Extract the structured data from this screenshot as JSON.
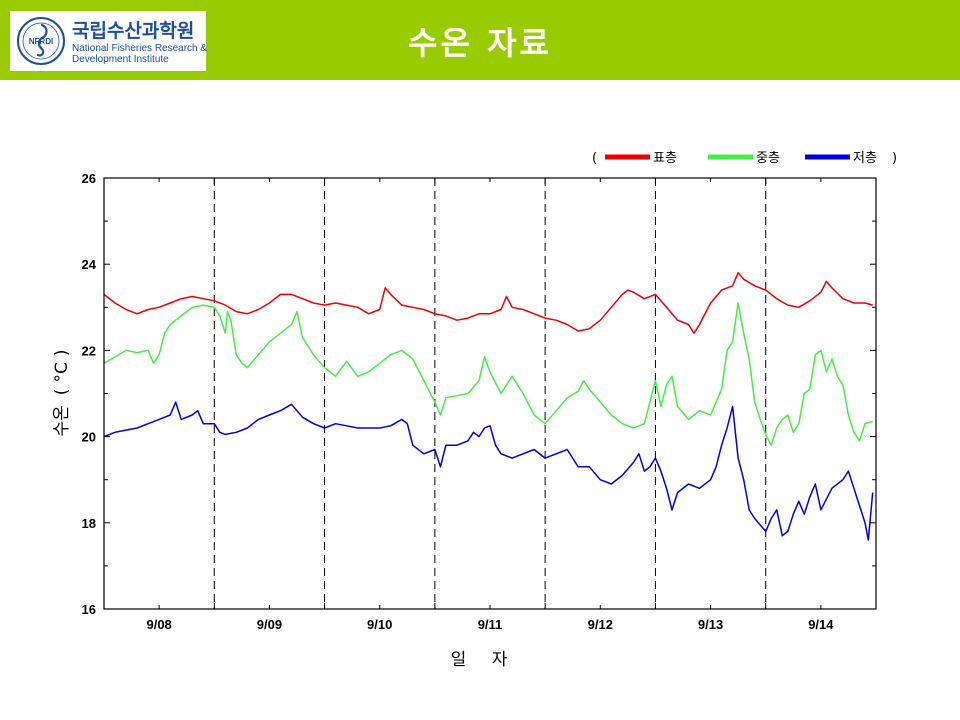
{
  "header": {
    "logo_korean": "국립수산과학원",
    "logo_english_line1": "National Fisheries Research &",
    "logo_english_line2": "Development Institute",
    "logo_emblem_text": "NFRDI",
    "page_title": "수온 자료",
    "background_color": "#99cc00"
  },
  "chart_data": {
    "type": "line",
    "title": "",
    "xlabel": "일 자",
    "ylabel": "수온 (°C)",
    "ylabel_parts": [
      "수온",
      "(",
      "°C",
      ")"
    ],
    "ylim": [
      16,
      26
    ],
    "yticks": [
      16,
      18,
      20,
      22,
      24,
      26
    ],
    "xlim": [
      0,
      7
    ],
    "day_labels": [
      "9/08",
      "9/09",
      "9/10",
      "9/11",
      "9/12",
      "9/13",
      "9/14"
    ],
    "day_dividers": [
      1,
      2,
      3,
      4,
      5,
      6
    ],
    "legend_open": "(",
    "legend_close": ")",
    "series": [
      {
        "name": "표층",
        "color": "#ee0000",
        "points": [
          [
            0,
            23.3
          ],
          [
            0.1,
            23.1
          ],
          [
            0.2,
            22.95
          ],
          [
            0.3,
            22.85
          ],
          [
            0.4,
            22.95
          ],
          [
            0.5,
            23.0
          ],
          [
            0.6,
            23.1
          ],
          [
            0.7,
            23.2
          ],
          [
            0.8,
            23.25
          ],
          [
            0.9,
            23.2
          ],
          [
            1.0,
            23.15
          ],
          [
            1.1,
            23.05
          ],
          [
            1.2,
            22.9
          ],
          [
            1.3,
            22.85
          ],
          [
            1.4,
            22.95
          ],
          [
            1.5,
            23.1
          ],
          [
            1.6,
            23.3
          ],
          [
            1.7,
            23.3
          ],
          [
            1.8,
            23.2
          ],
          [
            1.9,
            23.1
          ],
          [
            2.0,
            23.05
          ],
          [
            2.1,
            23.1
          ],
          [
            2.2,
            23.05
          ],
          [
            2.3,
            23.0
          ],
          [
            2.4,
            22.85
          ],
          [
            2.5,
            22.95
          ],
          [
            2.55,
            23.45
          ],
          [
            2.6,
            23.3
          ],
          [
            2.7,
            23.05
          ],
          [
            2.8,
            23.0
          ],
          [
            2.9,
            22.95
          ],
          [
            3.0,
            22.85
          ],
          [
            3.1,
            22.8
          ],
          [
            3.2,
            22.7
          ],
          [
            3.3,
            22.75
          ],
          [
            3.4,
            22.85
          ],
          [
            3.5,
            22.85
          ],
          [
            3.6,
            22.95
          ],
          [
            3.65,
            23.25
          ],
          [
            3.7,
            23.0
          ],
          [
            3.8,
            22.95
          ],
          [
            3.9,
            22.85
          ],
          [
            4.0,
            22.75
          ],
          [
            4.1,
            22.7
          ],
          [
            4.2,
            22.6
          ],
          [
            4.3,
            22.45
          ],
          [
            4.4,
            22.5
          ],
          [
            4.5,
            22.7
          ],
          [
            4.6,
            23.0
          ],
          [
            4.7,
            23.3
          ],
          [
            4.75,
            23.4
          ],
          [
            4.8,
            23.35
          ],
          [
            4.9,
            23.2
          ],
          [
            5.0,
            23.3
          ],
          [
            5.1,
            23.0
          ],
          [
            5.2,
            22.7
          ],
          [
            5.3,
            22.6
          ],
          [
            5.35,
            22.4
          ],
          [
            5.4,
            22.6
          ],
          [
            5.5,
            23.1
          ],
          [
            5.6,
            23.4
          ],
          [
            5.7,
            23.5
          ],
          [
            5.75,
            23.8
          ],
          [
            5.8,
            23.65
          ],
          [
            5.9,
            23.5
          ],
          [
            6.0,
            23.4
          ],
          [
            6.1,
            23.2
          ],
          [
            6.2,
            23.05
          ],
          [
            6.3,
            23.0
          ],
          [
            6.4,
            23.15
          ],
          [
            6.5,
            23.35
          ],
          [
            6.55,
            23.6
          ],
          [
            6.6,
            23.45
          ],
          [
            6.7,
            23.2
          ],
          [
            6.8,
            23.1
          ],
          [
            6.9,
            23.1
          ],
          [
            6.97,
            23.05
          ]
        ]
      },
      {
        "name": "중층",
        "color": "#44ee44",
        "points": [
          [
            0,
            21.7
          ],
          [
            0.1,
            21.85
          ],
          [
            0.2,
            22.0
          ],
          [
            0.3,
            21.95
          ],
          [
            0.4,
            22.0
          ],
          [
            0.45,
            21.7
          ],
          [
            0.5,
            21.9
          ],
          [
            0.55,
            22.4
          ],
          [
            0.6,
            22.6
          ],
          [
            0.7,
            22.8
          ],
          [
            0.8,
            23.0
          ],
          [
            0.9,
            23.05
          ],
          [
            1.0,
            23.0
          ],
          [
            1.05,
            22.8
          ],
          [
            1.1,
            22.4
          ],
          [
            1.12,
            22.9
          ],
          [
            1.15,
            22.7
          ],
          [
            1.2,
            21.9
          ],
          [
            1.25,
            21.7
          ],
          [
            1.3,
            21.6
          ],
          [
            1.4,
            21.9
          ],
          [
            1.5,
            22.2
          ],
          [
            1.6,
            22.4
          ],
          [
            1.7,
            22.6
          ],
          [
            1.75,
            22.9
          ],
          [
            1.8,
            22.3
          ],
          [
            1.9,
            21.9
          ],
          [
            2.0,
            21.6
          ],
          [
            2.1,
            21.4
          ],
          [
            2.2,
            21.75
          ],
          [
            2.3,
            21.4
          ],
          [
            2.4,
            21.5
          ],
          [
            2.5,
            21.7
          ],
          [
            2.6,
            21.9
          ],
          [
            2.7,
            22.0
          ],
          [
            2.8,
            21.8
          ],
          [
            2.9,
            21.3
          ],
          [
            3.0,
            20.8
          ],
          [
            3.05,
            20.5
          ],
          [
            3.1,
            20.9
          ],
          [
            3.2,
            20.95
          ],
          [
            3.3,
            21.0
          ],
          [
            3.4,
            21.3
          ],
          [
            3.45,
            21.85
          ],
          [
            3.5,
            21.5
          ],
          [
            3.6,
            21.0
          ],
          [
            3.7,
            21.4
          ],
          [
            3.8,
            21.0
          ],
          [
            3.9,
            20.5
          ],
          [
            4.0,
            20.3
          ],
          [
            4.1,
            20.6
          ],
          [
            4.2,
            20.9
          ],
          [
            4.3,
            21.05
          ],
          [
            4.35,
            21.3
          ],
          [
            4.4,
            21.1
          ],
          [
            4.5,
            20.8
          ],
          [
            4.6,
            20.5
          ],
          [
            4.7,
            20.3
          ],
          [
            4.8,
            20.2
          ],
          [
            4.9,
            20.3
          ],
          [
            4.95,
            20.8
          ],
          [
            5.0,
            21.3
          ],
          [
            5.05,
            20.7
          ],
          [
            5.1,
            21.2
          ],
          [
            5.15,
            21.4
          ],
          [
            5.2,
            20.7
          ],
          [
            5.3,
            20.4
          ],
          [
            5.4,
            20.6
          ],
          [
            5.5,
            20.5
          ],
          [
            5.6,
            21.1
          ],
          [
            5.65,
            22.0
          ],
          [
            5.7,
            22.2
          ],
          [
            5.75,
            23.1
          ],
          [
            5.8,
            22.4
          ],
          [
            5.85,
            21.8
          ],
          [
            5.9,
            20.8
          ],
          [
            5.95,
            20.4
          ],
          [
            6.0,
            20.05
          ],
          [
            6.05,
            19.8
          ],
          [
            6.1,
            20.2
          ],
          [
            6.15,
            20.4
          ],
          [
            6.2,
            20.5
          ],
          [
            6.25,
            20.1
          ],
          [
            6.3,
            20.3
          ],
          [
            6.35,
            21.0
          ],
          [
            6.4,
            21.1
          ],
          [
            6.45,
            21.9
          ],
          [
            6.5,
            22.0
          ],
          [
            6.55,
            21.5
          ],
          [
            6.6,
            21.8
          ],
          [
            6.65,
            21.4
          ],
          [
            6.7,
            21.2
          ],
          [
            6.75,
            20.5
          ],
          [
            6.8,
            20.1
          ],
          [
            6.85,
            19.9
          ],
          [
            6.9,
            20.3
          ],
          [
            6.97,
            20.35
          ]
        ]
      },
      {
        "name": "저층",
        "color": "#0000dd",
        "points": [
          [
            0,
            20.0
          ],
          [
            0.1,
            20.1
          ],
          [
            0.2,
            20.15
          ],
          [
            0.3,
            20.2
          ],
          [
            0.4,
            20.3
          ],
          [
            0.5,
            20.4
          ],
          [
            0.6,
            20.5
          ],
          [
            0.65,
            20.8
          ],
          [
            0.7,
            20.4
          ],
          [
            0.8,
            20.5
          ],
          [
            0.85,
            20.6
          ],
          [
            0.9,
            20.3
          ],
          [
            1.0,
            20.3
          ],
          [
            1.05,
            20.1
          ],
          [
            1.1,
            20.05
          ],
          [
            1.2,
            20.1
          ],
          [
            1.3,
            20.2
          ],
          [
            1.4,
            20.4
          ],
          [
            1.5,
            20.5
          ],
          [
            1.6,
            20.6
          ],
          [
            1.7,
            20.75
          ],
          [
            1.8,
            20.45
          ],
          [
            1.9,
            20.3
          ],
          [
            2.0,
            20.2
          ],
          [
            2.1,
            20.3
          ],
          [
            2.2,
            20.25
          ],
          [
            2.3,
            20.2
          ],
          [
            2.4,
            20.2
          ],
          [
            2.5,
            20.2
          ],
          [
            2.6,
            20.25
          ],
          [
            2.7,
            20.4
          ],
          [
            2.75,
            20.3
          ],
          [
            2.8,
            19.8
          ],
          [
            2.9,
            19.6
          ],
          [
            3.0,
            19.7
          ],
          [
            3.05,
            19.3
          ],
          [
            3.1,
            19.8
          ],
          [
            3.2,
            19.8
          ],
          [
            3.3,
            19.9
          ],
          [
            3.35,
            20.1
          ],
          [
            3.4,
            20.0
          ],
          [
            3.45,
            20.2
          ],
          [
            3.5,
            20.25
          ],
          [
            3.55,
            19.8
          ],
          [
            3.6,
            19.6
          ],
          [
            3.7,
            19.5
          ],
          [
            3.8,
            19.6
          ],
          [
            3.9,
            19.7
          ],
          [
            4.0,
            19.5
          ],
          [
            4.1,
            19.6
          ],
          [
            4.2,
            19.7
          ],
          [
            4.3,
            19.3
          ],
          [
            4.4,
            19.3
          ],
          [
            4.5,
            19.0
          ],
          [
            4.6,
            18.9
          ],
          [
            4.7,
            19.1
          ],
          [
            4.8,
            19.4
          ],
          [
            4.85,
            19.6
          ],
          [
            4.9,
            19.2
          ],
          [
            4.95,
            19.3
          ],
          [
            5.0,
            19.5
          ],
          [
            5.05,
            19.2
          ],
          [
            5.1,
            18.8
          ],
          [
            5.15,
            18.3
          ],
          [
            5.2,
            18.7
          ],
          [
            5.3,
            18.9
          ],
          [
            5.4,
            18.8
          ],
          [
            5.5,
            19.0
          ],
          [
            5.55,
            19.3
          ],
          [
            5.6,
            19.8
          ],
          [
            5.65,
            20.2
          ],
          [
            5.7,
            20.7
          ],
          [
            5.75,
            19.5
          ],
          [
            5.8,
            19.0
          ],
          [
            5.85,
            18.3
          ],
          [
            5.9,
            18.1
          ],
          [
            6.0,
            17.8
          ],
          [
            6.05,
            18.1
          ],
          [
            6.1,
            18.3
          ],
          [
            6.15,
            17.7
          ],
          [
            6.2,
            17.8
          ],
          [
            6.25,
            18.2
          ],
          [
            6.3,
            18.5
          ],
          [
            6.35,
            18.2
          ],
          [
            6.4,
            18.6
          ],
          [
            6.45,
            18.9
          ],
          [
            6.5,
            18.3
          ],
          [
            6.6,
            18.8
          ],
          [
            6.7,
            19.0
          ],
          [
            6.75,
            19.2
          ],
          [
            6.8,
            18.8
          ],
          [
            6.85,
            18.4
          ],
          [
            6.9,
            18.0
          ],
          [
            6.93,
            17.6
          ],
          [
            6.97,
            18.7
          ]
        ]
      }
    ]
  }
}
